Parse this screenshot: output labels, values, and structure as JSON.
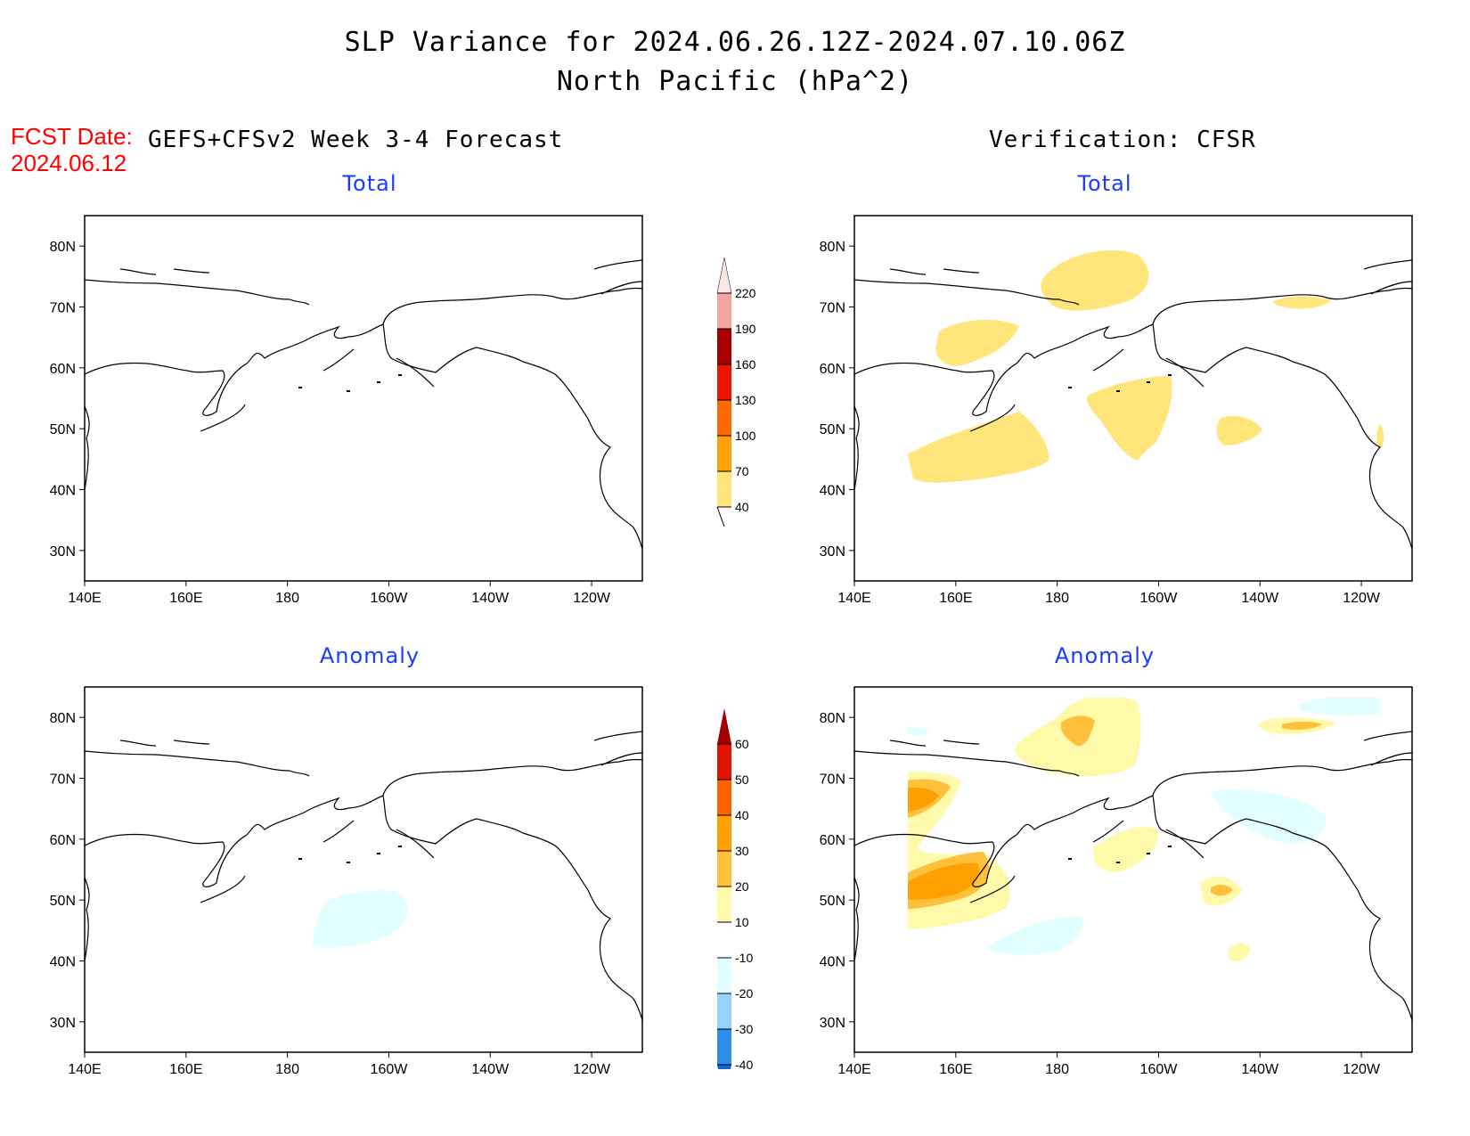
{
  "title_line1": "SLP Variance for 2024.06.26.12Z-2024.07.10.06Z",
  "title_line2": "North Pacific (hPa^2)",
  "fcst_label": "FCST Date:",
  "fcst_date": "2024.06.12",
  "forecast_header": "GEFS+CFSv2 Week 3-4 Forecast",
  "verification_header": "Verification: CFSR",
  "panels": [
    {
      "id": "fcst-total",
      "title": "Total"
    },
    {
      "id": "verif-total",
      "title": "Total"
    },
    {
      "id": "fcst-anomaly",
      "title": "Anomaly"
    },
    {
      "id": "verif-anomaly",
      "title": "Anomaly"
    }
  ],
  "lat_labels": [
    "80N",
    "70N",
    "60N",
    "50N",
    "40N",
    "30N"
  ],
  "lon_labels": [
    "140E",
    "160E",
    "180",
    "160W",
    "140W",
    "120W"
  ],
  "total_colorbar": {
    "labels": [
      "40",
      "70",
      "100",
      "130",
      "160",
      "190",
      "220"
    ],
    "colors": [
      "#ffe57a",
      "#ffa10c",
      "#ff6a00",
      "#e81700",
      "#a60000",
      "#f4a3a3",
      "#fde6e6"
    ]
  },
  "anomaly_colorbar": {
    "labels": [
      "-40",
      "-30",
      "-20",
      "-10",
      "10",
      "20",
      "30",
      "40",
      "50",
      "60"
    ],
    "colors": [
      "#1464d2",
      "#2d8ce6",
      "#96d2fa",
      "#e1ffff",
      "#ffffff",
      "#fffaaa",
      "#ffc03c",
      "#ffa000",
      "#ff6000",
      "#e11400",
      "#a50000"
    ]
  },
  "colors": {
    "title_text": "#000000",
    "fcst_text": "#ff0000",
    "panel_title": "#1a3cff"
  }
}
